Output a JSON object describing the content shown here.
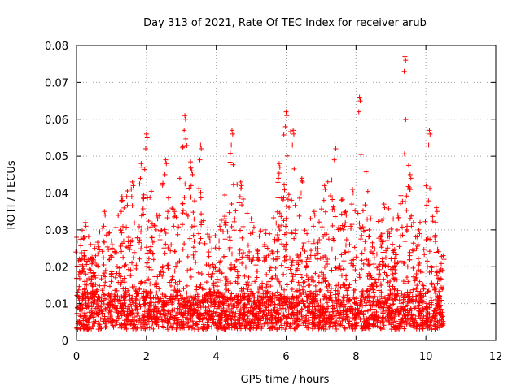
{
  "chart_data": {
    "type": "scatter",
    "title": "Day 313 of 2021, Rate Of TEC Index for receiver arub",
    "xlabel": "GPS time / hours",
    "ylabel": "ROTI / TECUs",
    "xlim": [
      0,
      12
    ],
    "ylim": [
      0,
      0.08
    ],
    "x_ticks": [
      "0",
      "2",
      "4",
      "6",
      "8",
      "10",
      "12"
    ],
    "y_ticks": [
      "0",
      "0.01",
      "0.02",
      "0.03",
      "0.04",
      "0.05",
      "0.06",
      "0.07",
      "0.08"
    ],
    "grid": true,
    "marker": "+",
    "color": "#ff0000",
    "x_data_range": [
      0.0,
      10.5
    ],
    "envelope": [
      {
        "x": 0.0,
        "y": 0.028
      },
      {
        "x": 0.25,
        "y": 0.032
      },
      {
        "x": 0.5,
        "y": 0.026
      },
      {
        "x": 0.8,
        "y": 0.035
      },
      {
        "x": 1.0,
        "y": 0.027
      },
      {
        "x": 1.3,
        "y": 0.039
      },
      {
        "x": 1.6,
        "y": 0.043
      },
      {
        "x": 1.85,
        "y": 0.048
      },
      {
        "x": 2.0,
        "y": 0.056
      },
      {
        "x": 2.3,
        "y": 0.034
      },
      {
        "x": 2.55,
        "y": 0.049
      },
      {
        "x": 2.8,
        "y": 0.035
      },
      {
        "x": 3.1,
        "y": 0.061
      },
      {
        "x": 3.3,
        "y": 0.046
      },
      {
        "x": 3.55,
        "y": 0.053
      },
      {
        "x": 3.8,
        "y": 0.028
      },
      {
        "x": 4.1,
        "y": 0.031
      },
      {
        "x": 4.45,
        "y": 0.057
      },
      {
        "x": 4.7,
        "y": 0.043
      },
      {
        "x": 5.0,
        "y": 0.033
      },
      {
        "x": 5.4,
        "y": 0.03
      },
      {
        "x": 5.8,
        "y": 0.048
      },
      {
        "x": 6.0,
        "y": 0.062
      },
      {
        "x": 6.2,
        "y": 0.057
      },
      {
        "x": 6.45,
        "y": 0.044
      },
      {
        "x": 6.8,
        "y": 0.035
      },
      {
        "x": 7.1,
        "y": 0.042
      },
      {
        "x": 7.4,
        "y": 0.053
      },
      {
        "x": 7.7,
        "y": 0.035
      },
      {
        "x": 7.9,
        "y": 0.041
      },
      {
        "x": 8.1,
        "y": 0.066
      },
      {
        "x": 8.4,
        "y": 0.034
      },
      {
        "x": 8.8,
        "y": 0.037
      },
      {
        "x": 9.2,
        "y": 0.034
      },
      {
        "x": 9.4,
        "y": 0.077
      },
      {
        "x": 9.55,
        "y": 0.045
      },
      {
        "x": 9.8,
        "y": 0.03
      },
      {
        "x": 10.1,
        "y": 0.057
      },
      {
        "x": 10.3,
        "y": 0.036
      },
      {
        "x": 10.5,
        "y": 0.023
      }
    ],
    "baseline": [
      0.003,
      0.012
    ]
  }
}
